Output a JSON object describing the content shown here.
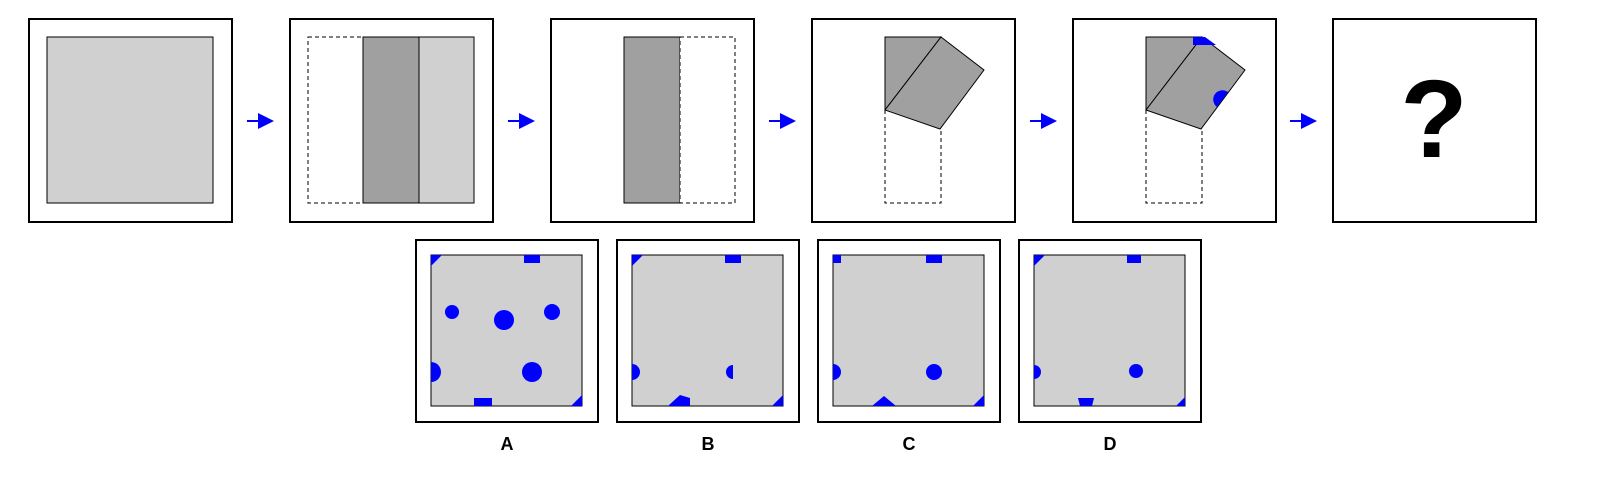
{
  "puzzle": {
    "question_symbol": "?",
    "colors": {
      "paper": "#d0d0d0",
      "folded_layer": "#a0a0a0",
      "punch_hole": "#0000ff",
      "arrow": "#0000ff",
      "frame": "#000000"
    }
  },
  "options": [
    {
      "label": "A"
    },
    {
      "label": "B"
    },
    {
      "label": "C"
    },
    {
      "label": "D"
    }
  ]
}
